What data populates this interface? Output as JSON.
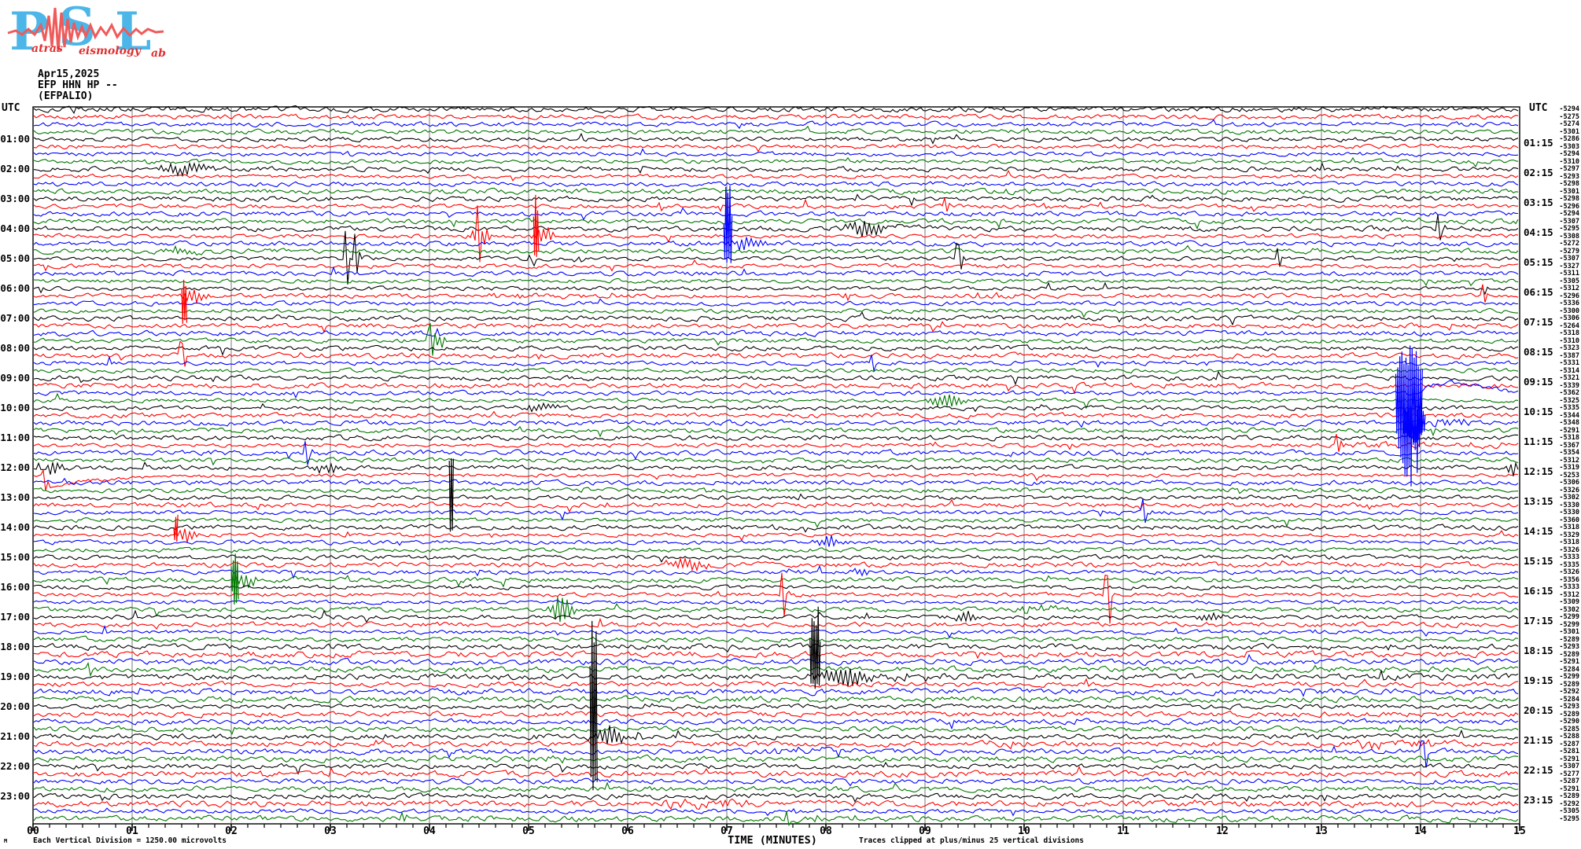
{
  "logo": {
    "letters": [
      "P",
      "S",
      "L"
    ],
    "words": [
      "atras",
      "eismology",
      "ab"
    ],
    "letter_color": "#4cb6e8",
    "accent_color": "#e8474a"
  },
  "header": {
    "date": "Apr15,2025",
    "channel": "EFP HHN HP --",
    "station": "(EFPALIO)"
  },
  "axes": {
    "left_unit": "UTC",
    "right_unit": "UTC",
    "left_labels": [
      "01:00",
      "02:00",
      "03:00",
      "04:00",
      "05:00",
      "06:00",
      "07:00",
      "08:00",
      "09:00",
      "10:00",
      "11:00",
      "12:00",
      "13:00",
      "14:00",
      "15:00",
      "16:00",
      "17:00",
      "18:00",
      "19:00",
      "20:00",
      "21:00",
      "22:00",
      "23:00"
    ],
    "right_labels": [
      "01:15",
      "02:15",
      "03:15",
      "04:15",
      "05:15",
      "06:15",
      "07:15",
      "08:15",
      "09:15",
      "10:15",
      "11:15",
      "12:15",
      "13:15",
      "14:15",
      "15:15",
      "16:15",
      "17:15",
      "18:15",
      "19:15",
      "20:15",
      "21:15",
      "22:15",
      "23:15"
    ],
    "x_ticks": [
      "00",
      "01",
      "02",
      "03",
      "04",
      "05",
      "06",
      "07",
      "08",
      "09",
      "10",
      "11",
      "12",
      "13",
      "14",
      "15"
    ],
    "xlabel": "TIME (MINUTES)",
    "clip_note": "Traces clipped at plus/minus 25 vertical divisions",
    "scale_note": "Each Vertical Division = 1250.00 microvolts",
    "corner_mark": "M"
  },
  "chart_data": {
    "type": "line",
    "kind": "helicorder-seismogram",
    "rows": 96,
    "row_start_utc": "00:00",
    "row_step_minutes": 15,
    "minutes_per_row": 15,
    "x_range_minutes": [
      0,
      15
    ],
    "grid": "vertical gridlines every 1 minute, minor ticks every 10 seconds",
    "colors_cycle": [
      "#000000",
      "#ff0000",
      "#0000ff",
      "#007700"
    ],
    "grid_color": "#7a7a7a",
    "trace_offsets_microvolts": [
      "-5294",
      "-5275",
      "-5274",
      "-5301",
      "-5286",
      "-5303",
      "-5294",
      "-5310",
      "-5297",
      "-5293",
      "-5298",
      "-5301",
      "-5298",
      "-5296",
      "-5294",
      "-5307",
      "-5295",
      "-5308",
      "-5272",
      "-5279",
      "-5307",
      "-5327",
      "-5311",
      "-5305",
      "-5312",
      "-5296",
      "-5336",
      "-5300",
      "-5306",
      "-5264",
      "-5318",
      "-5310",
      "-5323",
      "-5387",
      "-5331",
      "-5314",
      "-5321",
      "-5339",
      "-5362",
      "-5325",
      "-5335",
      "-5344",
      "-5348",
      "-5291",
      "-5318",
      "-5367",
      "-5354",
      "-5312",
      "-5319",
      "-5253",
      "-5306",
      "-5326",
      "-5302",
      "-5330",
      "-5330",
      "-5360",
      "-5318",
      "-5329",
      "-5318",
      "-5326",
      "-5333",
      "-5335",
      "-5326",
      "-5356",
      "-5333",
      "-5312",
      "-5309",
      "-5302",
      "-5299",
      "-5299",
      "-5301",
      "-5289",
      "-5293",
      "-5289",
      "-5291",
      "-5284",
      "-5299",
      "-5289",
      "-5292",
      "-5284",
      "-5293",
      "-5289",
      "-5290",
      "-5285",
      "-5288",
      "-5287",
      "-5281",
      "-5291",
      "-5307",
      "-5277",
      "-5287",
      "-5291",
      "-5289",
      "-5292",
      "-5305",
      "-5295"
    ],
    "events": [
      {
        "time": "02:00",
        "type": "burst",
        "m0": 1.25,
        "m1": 1.8,
        "amp": 8
      },
      {
        "time": "03:15",
        "type": "spike",
        "m0": 6.32,
        "up": 6,
        "down": 6
      },
      {
        "time": "03:15",
        "type": "spike",
        "m0": 9.2,
        "up": 9,
        "down": 8
      },
      {
        "time": "03:15",
        "type": "spike",
        "m0": 10.2,
        "up": 4,
        "down": 4
      },
      {
        "time": "04:00",
        "type": "burst",
        "m0": 8.2,
        "m1": 8.6,
        "amp": 13
      },
      {
        "time": "04:00",
        "type": "hump",
        "m0": 8.6,
        "m1": 9.3,
        "amp": 5
      },
      {
        "time": "04:00",
        "type": "spike",
        "m0": 14.17,
        "up": 18,
        "down": 16
      },
      {
        "time": "04:15",
        "type": "spike",
        "m0": 4.48,
        "up": 26,
        "down": 22
      },
      {
        "time": "04:15",
        "type": "burst",
        "m0": 4.42,
        "m1": 4.62,
        "amp": 14
      },
      {
        "time": "04:15",
        "type": "mega",
        "m0": 5.05,
        "m1": 5.11,
        "up": 58,
        "down": 30
      },
      {
        "time": "04:15",
        "type": "burst",
        "m0": 5.05,
        "m1": 5.3,
        "amp": 10
      },
      {
        "time": "04:30",
        "type": "mega",
        "m0": 6.97,
        "m1": 7.06,
        "up": 82,
        "down": 30
      },
      {
        "time": "04:30",
        "type": "burst",
        "m0": 7.0,
        "m1": 7.35,
        "amp": 9
      },
      {
        "time": "04:45",
        "type": "burst",
        "m0": 1.3,
        "m1": 1.7,
        "amp": 5
      },
      {
        "time": "05:00",
        "type": "spike",
        "m0": 3.15,
        "up": 36,
        "down": 34
      },
      {
        "time": "05:00",
        "type": "spike",
        "m0": 3.24,
        "up": 28,
        "down": 20
      },
      {
        "time": "05:00",
        "type": "fuzz",
        "m0": 5.35,
        "m1": 5.7,
        "amp": 3
      },
      {
        "time": "05:00",
        "type": "spike",
        "m0": 9.33,
        "up": 18,
        "down": 14
      },
      {
        "time": "05:00",
        "type": "spike",
        "m0": 12.55,
        "up": 12,
        "down": 11
      },
      {
        "time": "06:15",
        "type": "mega",
        "m0": 1.5,
        "m1": 1.56,
        "up": 22,
        "down": 46
      },
      {
        "time": "06:15",
        "type": "burst",
        "m0": 1.48,
        "m1": 1.78,
        "amp": 9
      },
      {
        "time": "06:15",
        "type": "fuzz",
        "m0": 4.55,
        "m1": 5.65,
        "amp": 3
      },
      {
        "time": "06:15",
        "type": "spike",
        "m0": 8.2,
        "up": 6,
        "down": 5
      },
      {
        "time": "06:15",
        "type": "fuzz",
        "m0": 9.4,
        "m1": 9.95,
        "amp": 3.5
      },
      {
        "time": "06:15",
        "type": "spike",
        "m0": 14.62,
        "up": 12,
        "down": 10
      },
      {
        "time": "07:00",
        "type": "fuzz",
        "m0": 2.3,
        "m1": 2.65,
        "amp": 2.5
      },
      {
        "time": "07:45",
        "type": "spike",
        "m0": 4.0,
        "up": 16,
        "down": 14
      },
      {
        "time": "07:45",
        "type": "burst",
        "m0": 3.95,
        "m1": 4.2,
        "amp": 8
      },
      {
        "time": "08:15",
        "type": "spike",
        "m0": 1.5,
        "up": 16,
        "down": 16
      },
      {
        "time": "08:30",
        "type": "spike",
        "m0": 8.47,
        "up": 11,
        "down": 10
      },
      {
        "time": "09:45",
        "type": "burst",
        "m0": 9.0,
        "m1": 9.4,
        "amp": 10
      },
      {
        "time": "09:30",
        "type": "mega",
        "m0": 13.75,
        "m1": 14.02,
        "up": 64,
        "down": 120
      },
      {
        "time": "09:30",
        "type": "hump",
        "m0": 14.02,
        "m1": 15.0,
        "amp": 13
      },
      {
        "time": "10:30",
        "type": "mega",
        "m0": 13.82,
        "m1": 14.05,
        "up": 26,
        "down": 26
      },
      {
        "time": "10:30",
        "type": "fuzz",
        "m0": 14.05,
        "m1": 14.5,
        "amp": 6
      },
      {
        "time": "10:00",
        "type": "burst",
        "m0": 4.9,
        "m1": 5.3,
        "amp": 5
      },
      {
        "time": "10:00",
        "type": "fuzz",
        "m0": 10.0,
        "m1": 10.35,
        "amp": 2.5
      },
      {
        "time": "11:15",
        "type": "spike",
        "m0": 13.16,
        "up": 12,
        "down": 10
      },
      {
        "time": "11:15",
        "type": "fuzz",
        "m0": 13.3,
        "m1": 15.0,
        "amp": 3
      },
      {
        "time": "11:30",
        "type": "spike",
        "m0": 2.75,
        "up": 18,
        "down": 14
      },
      {
        "time": "12:00",
        "type": "burst",
        "m0": 0.02,
        "m1": 0.35,
        "amp": 9
      },
      {
        "time": "12:00",
        "type": "burst",
        "m0": 2.8,
        "m1": 3.1,
        "amp": 6
      },
      {
        "time": "12:00",
        "type": "mega",
        "m0": 4.2,
        "m1": 4.25,
        "up": 18,
        "down": 100
      },
      {
        "time": "12:00",
        "type": "burst",
        "m0": 14.85,
        "m1": 15.0,
        "amp": 10
      },
      {
        "time": "12:15",
        "type": "spike",
        "m0": 0.1,
        "up": 6,
        "down": 18
      },
      {
        "time": "12:15",
        "type": "drift",
        "m0": 0.12,
        "m1": 1.9,
        "amp": 16
      },
      {
        "time": "13:30",
        "type": "spike",
        "m0": 11.2,
        "up": 16,
        "down": 14
      },
      {
        "time": "14:15",
        "type": "mega",
        "m0": 1.42,
        "m1": 1.47,
        "up": 32,
        "down": 12
      },
      {
        "time": "14:15",
        "type": "burst",
        "m0": 1.42,
        "m1": 1.68,
        "amp": 9
      },
      {
        "time": "14:30",
        "type": "burst",
        "m0": 7.9,
        "m1": 8.15,
        "amp": 8
      },
      {
        "time": "15:15",
        "type": "burst",
        "m0": 6.38,
        "m1": 6.8,
        "amp": 9
      },
      {
        "time": "15:30",
        "type": "fuzz",
        "m0": 7.5,
        "m1": 7.78,
        "amp": 3
      },
      {
        "time": "15:30",
        "type": "burst",
        "m0": 8.25,
        "m1": 8.45,
        "amp": 6
      },
      {
        "time": "15:45",
        "type": "mega",
        "m0": 2.0,
        "m1": 2.08,
        "up": 36,
        "down": 34
      },
      {
        "time": "15:45",
        "type": "burst",
        "m0": 2.0,
        "m1": 2.3,
        "amp": 8
      },
      {
        "time": "16:15",
        "type": "spike",
        "m0": 7.55,
        "up": 30,
        "down": 28
      },
      {
        "time": "16:15",
        "type": "spike",
        "m0": 10.83,
        "up": 26,
        "down": 36
      },
      {
        "time": "16:45",
        "type": "burst",
        "m0": 5.2,
        "m1": 5.45,
        "amp": 22
      },
      {
        "time": "16:45",
        "type": "fuzz",
        "m0": 9.85,
        "m1": 10.5,
        "amp": 3.5
      },
      {
        "time": "17:00",
        "type": "burst",
        "m0": 9.3,
        "m1": 9.52,
        "amp": 8
      },
      {
        "time": "17:00",
        "type": "burst",
        "m0": 11.75,
        "m1": 12.0,
        "amp": 6
      },
      {
        "time": "18:45",
        "type": "spike",
        "m0": 0.56,
        "up": 8,
        "down": 6
      },
      {
        "time": "19:00",
        "type": "mega",
        "m0": 7.84,
        "m1": 7.95,
        "up": 100,
        "down": 16
      },
      {
        "time": "19:00",
        "type": "burst",
        "m0": 7.86,
        "m1": 8.45,
        "amp": 13
      },
      {
        "time": "19:00",
        "type": "fuzz",
        "m0": 8.45,
        "m1": 9.3,
        "amp": 4
      },
      {
        "time": "19:00",
        "type": "spike",
        "m0": 13.6,
        "up": 6,
        "down": 4
      },
      {
        "time": "20:00",
        "type": "fuzz",
        "m0": 6.08,
        "m1": 6.55,
        "amp": 2.5
      },
      {
        "time": "20:15",
        "type": "fuzz",
        "m0": 2.9,
        "m1": 3.1,
        "amp": 2.5
      },
      {
        "time": "21:00",
        "type": "mega",
        "m0": 5.62,
        "m1": 5.7,
        "up": 205,
        "down": 80
      },
      {
        "time": "21:00",
        "type": "burst",
        "m0": 5.64,
        "m1": 5.98,
        "amp": 12
      },
      {
        "time": "21:00",
        "type": "fuzz",
        "m0": 5.98,
        "m1": 6.25,
        "amp": 4
      },
      {
        "time": "21:15",
        "type": "fuzz",
        "m0": 3.24,
        "m1": 3.95,
        "amp": 3
      },
      {
        "time": "21:15",
        "type": "fuzz",
        "m0": 9.5,
        "m1": 10.1,
        "amp": 4
      },
      {
        "time": "21:15",
        "type": "fuzz",
        "m0": 13.3,
        "m1": 14.4,
        "amp": 5
      },
      {
        "time": "21:30",
        "type": "fuzz",
        "m0": 7.4,
        "m1": 8.1,
        "amp": 3
      },
      {
        "time": "21:30",
        "type": "spike",
        "m0": 14.02,
        "up": 14,
        "down": 20
      },
      {
        "time": "21:45",
        "type": "fuzz",
        "m0": 5.1,
        "m1": 5.4,
        "amp": 2.5
      },
      {
        "time": "23:15",
        "type": "fuzz",
        "m0": 6.25,
        "m1": 7.25,
        "amp": 4.5
      },
      {
        "time": "23:45",
        "type": "spike",
        "m0": 3.73,
        "up": 7,
        "down": 5
      },
      {
        "time": "23:45",
        "type": "spike",
        "m0": 7.6,
        "up": 9,
        "down": 7
      }
    ]
  }
}
